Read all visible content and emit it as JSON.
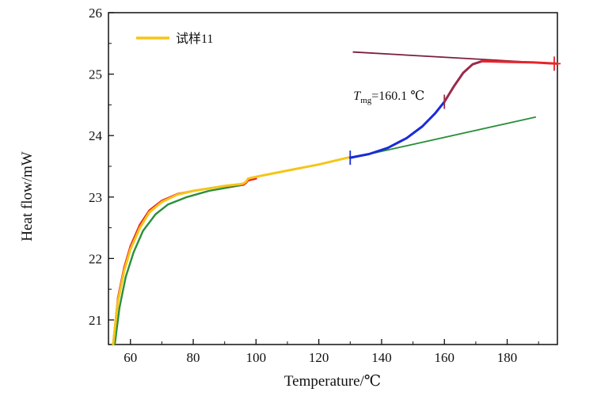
{
  "chart_data": {
    "type": "line",
    "title": "",
    "xlabel": "Temperature/℃",
    "ylabel": "Heat flow/mW",
    "xlim": [
      53,
      196
    ],
    "ylim": [
      20.6,
      26
    ],
    "xticks": [
      60,
      80,
      100,
      120,
      140,
      160,
      180
    ],
    "yticks": [
      21,
      22,
      23,
      24,
      25,
      26
    ],
    "grid": false,
    "legend": {
      "position": "top-left",
      "label": "试样11",
      "color": "#f5c518"
    },
    "series": [
      {
        "name": "试样11",
        "color": "#f5c518",
        "points": [
          [
            54.5,
            20.6
          ],
          [
            56,
            21.3
          ],
          [
            58,
            21.8
          ],
          [
            60,
            22.15
          ],
          [
            63,
            22.5
          ],
          [
            66,
            22.75
          ],
          [
            70,
            22.92
          ],
          [
            75,
            23.04
          ],
          [
            80,
            23.1
          ],
          [
            85,
            23.14
          ],
          [
            90,
            23.18
          ],
          [
            95,
            23.21
          ],
          [
            96,
            23.22
          ],
          [
            96.8,
            23.25
          ],
          [
            97.5,
            23.3
          ],
          [
            100,
            23.33
          ],
          [
            110,
            23.43
          ],
          [
            120,
            23.53
          ],
          [
            130,
            23.65
          ]
        ]
      }
    ],
    "fitted_curve": {
      "color": "#e8252b",
      "points": [
        [
          54.5,
          20.6
        ],
        [
          56,
          21.35
        ],
        [
          58,
          21.85
        ],
        [
          60,
          22.2
        ],
        [
          63,
          22.55
        ],
        [
          66,
          22.78
        ],
        [
          70,
          22.94
        ],
        [
          75,
          23.05
        ],
        [
          80,
          23.1
        ],
        [
          85,
          23.14
        ],
        [
          90,
          23.18
        ],
        [
          95,
          23.2
        ],
        [
          96,
          23.2
        ],
        [
          96.8,
          23.23
        ],
        [
          97.5,
          23.27
        ],
        [
          100,
          23.3
        ]
      ]
    },
    "lower_fit": {
      "color": "#2a8f3a",
      "points": [
        [
          55,
          20.6
        ],
        [
          56.5,
          21.2
        ],
        [
          58.5,
          21.7
        ],
        [
          61,
          22.1
        ],
        [
          64,
          22.45
        ],
        [
          68,
          22.72
        ],
        [
          72,
          22.88
        ],
        [
          78,
          23.0
        ],
        [
          85,
          23.1
        ],
        [
          96,
          23.2
        ]
      ]
    },
    "glass_transition": {
      "color": "#1a2bd8",
      "points": [
        [
          130,
          23.64
        ],
        [
          136,
          23.7
        ],
        [
          142,
          23.8
        ],
        [
          148,
          23.96
        ],
        [
          153,
          24.15
        ],
        [
          157,
          24.36
        ],
        [
          160,
          24.55
        ]
      ]
    },
    "upper_transition": {
      "color": "#9b2a4a",
      "points": [
        [
          160,
          24.55
        ],
        [
          163,
          24.8
        ],
        [
          166,
          25.02
        ],
        [
          169,
          25.16
        ],
        [
          172,
          25.21
        ],
        [
          176,
          25.21
        ]
      ]
    },
    "end_segment": {
      "color": "#e8252b",
      "points": [
        [
          172,
          25.21
        ],
        [
          180,
          25.2
        ],
        [
          188,
          25.19
        ],
        [
          196,
          25.17
        ]
      ]
    },
    "baseline_lower": {
      "color": "#2a8f3a",
      "points": [
        [
          130,
          23.63
        ],
        [
          189,
          24.3
        ]
      ]
    },
    "baseline_upper": {
      "color": "#7a1f3d",
      "points": [
        [
          131,
          25.36
        ],
        [
          196,
          25.17
        ]
      ]
    },
    "markers": [
      {
        "x": 130,
        "y": 23.64,
        "color": "#1a2bd8"
      },
      {
        "x": 160,
        "y": 24.55,
        "color": "#9b2a4a"
      },
      {
        "x": 195,
        "y": 25.17,
        "color": "#e8252b"
      }
    ],
    "annotation": {
      "symbol": "T",
      "subscript": "mg",
      "text": "=160.1 ℃",
      "x": 131,
      "y": 24.58
    }
  }
}
